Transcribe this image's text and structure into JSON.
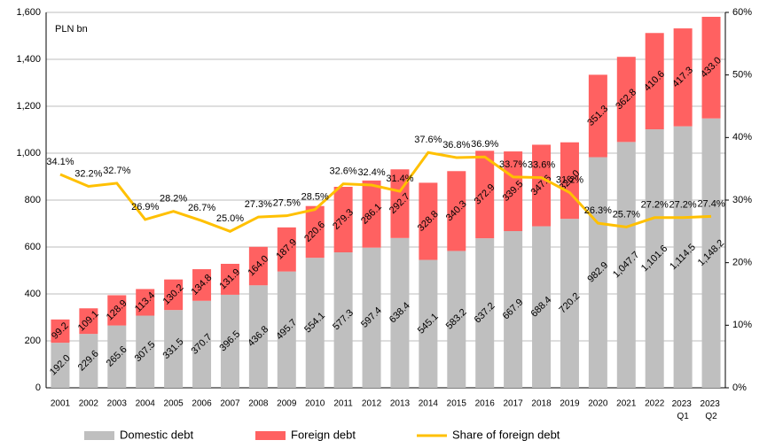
{
  "chart_data": {
    "type": "bar-line",
    "annotation": "PLN bn",
    "categories": [
      "2001",
      "2002",
      "2003",
      "2004",
      "2005",
      "2006",
      "2007",
      "2008",
      "2009",
      "2010",
      "2011",
      "2012",
      "2013",
      "2014",
      "2015",
      "2016",
      "2017",
      "2018",
      "2019",
      "2020",
      "2021",
      "2022",
      "2023 Q1",
      "2023 Q2"
    ],
    "series": [
      {
        "name": "Domestic debt",
        "color": "#bfbfbf",
        "stacked": true,
        "values": [
          192.0,
          229.6,
          265.6,
          307.5,
          331.5,
          370.7,
          396.5,
          436.8,
          495.7,
          554.1,
          577.3,
          597.4,
          638.4,
          545.1,
          583.2,
          637.2,
          667.9,
          688.4,
          720.2,
          982.9,
          1047.7,
          1101.6,
          1114.5,
          1148.2
        ],
        "value_labels": [
          "192.0",
          "229.6",
          "265.6",
          "307.5",
          "331.5",
          "370.7",
          "396.5",
          "436.8",
          "495.7",
          "554.1",
          "577.3",
          "597.4",
          "638.4",
          "545.1",
          "583.2",
          "637.2",
          "667.9",
          "688.4",
          "720.2",
          "982.9",
          "1,047.7",
          "1,101.6",
          "1,114.5",
          "1,148.2"
        ]
      },
      {
        "name": "Foreign debt",
        "color": "#ff6161",
        "stacked": true,
        "values": [
          99.2,
          109.1,
          128.9,
          113.4,
          130.2,
          134.8,
          131.9,
          164.0,
          187.9,
          220.6,
          279.3,
          286.1,
          292.7,
          328.8,
          340.3,
          372.9,
          339.5,
          347.6,
          326.0,
          351.3,
          362.8,
          410.6,
          417.3,
          433.0
        ],
        "value_labels": [
          "99.2",
          "109.1",
          "128.9",
          "113.4",
          "130.2",
          "134.8",
          "131.9",
          "164.0",
          "187.9",
          "220.6",
          "279.3",
          "286.1",
          "292.7",
          "328.8",
          "340.3",
          "372.9",
          "339.5",
          "347.6",
          "326.0",
          "351.3",
          "362.8",
          "410.6",
          "417.3",
          "433.0"
        ]
      },
      {
        "name": "Share of foreign debt",
        "color": "#ffc000",
        "type": "line",
        "axis": "y2",
        "values": [
          34.1,
          32.2,
          32.7,
          26.9,
          28.2,
          26.7,
          25.0,
          27.3,
          27.5,
          28.5,
          32.6,
          32.4,
          31.4,
          37.6,
          36.8,
          36.9,
          33.7,
          33.6,
          31.2,
          26.3,
          25.7,
          27.2,
          27.2,
          27.4
        ],
        "value_labels": [
          "34.1%",
          "32.2%",
          "32.7%",
          "26.9%",
          "28.2%",
          "26.7%",
          "25.0%",
          "27.3%",
          "27.5%",
          "28.5%",
          "32.6%",
          "32.4%",
          "31.4%",
          "37.6%",
          "36.8%",
          "36.9%",
          "33.7%",
          "33.6%",
          "31.2%",
          "26.3%",
          "25.7%",
          "27.2%",
          "27.2%",
          "27.4%"
        ]
      }
    ],
    "ylim": [
      0,
      1600
    ],
    "yticks": [
      0,
      200,
      400,
      600,
      800,
      {
        "value": 1000,
        "label": "1,000"
      },
      {
        "value": 1200,
        "label": "1,200"
      },
      {
        "value": 1400,
        "label": "1,400"
      },
      {
        "value": 1600,
        "label": "1,600"
      }
    ],
    "y2lim": [
      0,
      60
    ],
    "y2ticks": [
      {
        "value": 0,
        "label": "0%"
      },
      {
        "value": 10,
        "label": "10%"
      },
      {
        "value": 20,
        "label": "20%"
      },
      {
        "value": 30,
        "label": "30%"
      },
      {
        "value": 40,
        "label": "40%"
      },
      {
        "value": 50,
        "label": "50%"
      },
      {
        "value": 60,
        "label": "60%"
      }
    ],
    "grid": true,
    "legend": "bottom"
  }
}
